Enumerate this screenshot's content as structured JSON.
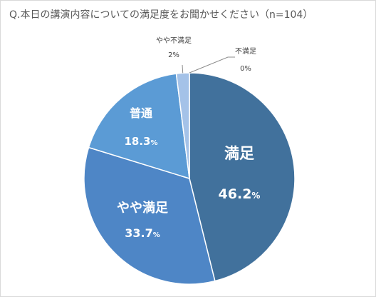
{
  "chart_data": {
    "type": "pie",
    "title": "Q.本日の講演内容についての満足度をお聞かせください（n=104）",
    "series": [
      {
        "name": "満足",
        "value": 46.2,
        "label": "46.2",
        "unit": "%",
        "color": "#41719c"
      },
      {
        "name": "やや満足",
        "value": 33.7,
        "label": "33.7",
        "unit": "%",
        "color": "#4e86c6"
      },
      {
        "name": "普通",
        "value": 18.3,
        "label": "18.3",
        "unit": "%",
        "color": "#5b9bd5"
      },
      {
        "name": "やや不満足",
        "value": 2,
        "label": "2",
        "unit": "%",
        "color": "#a4c2e8"
      },
      {
        "name": "不満足",
        "value": 0,
        "label": "0",
        "unit": "%",
        "color": "#c9daf0"
      }
    ]
  }
}
